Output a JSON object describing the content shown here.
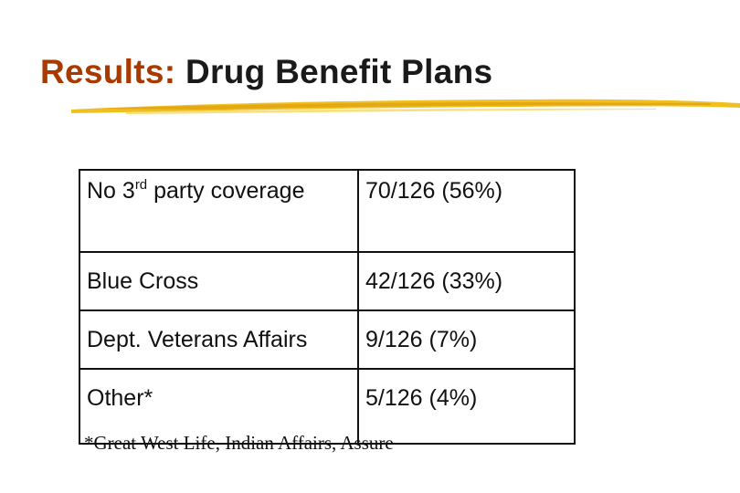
{
  "title": {
    "accent": "Results:",
    "rest": "Drug Benefit Plans"
  },
  "table": {
    "rows": [
      {
        "label_pre": "No  3",
        "label_sup": "rd",
        "label_post": " party coverage",
        "value": "70/126 (56%)"
      },
      {
        "label": "Blue Cross",
        "value": "42/126 (33%)"
      },
      {
        "label": "Dept. Veterans Affairs",
        "value": "9/126 (7%)"
      },
      {
        "label": "Other*",
        "value": "5/126 (4%)"
      }
    ]
  },
  "footnote": "*Great West Life, Indian Affairs, Assure",
  "colors": {
    "title_accent": "#a83a00",
    "underline_brush": "#f0c020"
  }
}
